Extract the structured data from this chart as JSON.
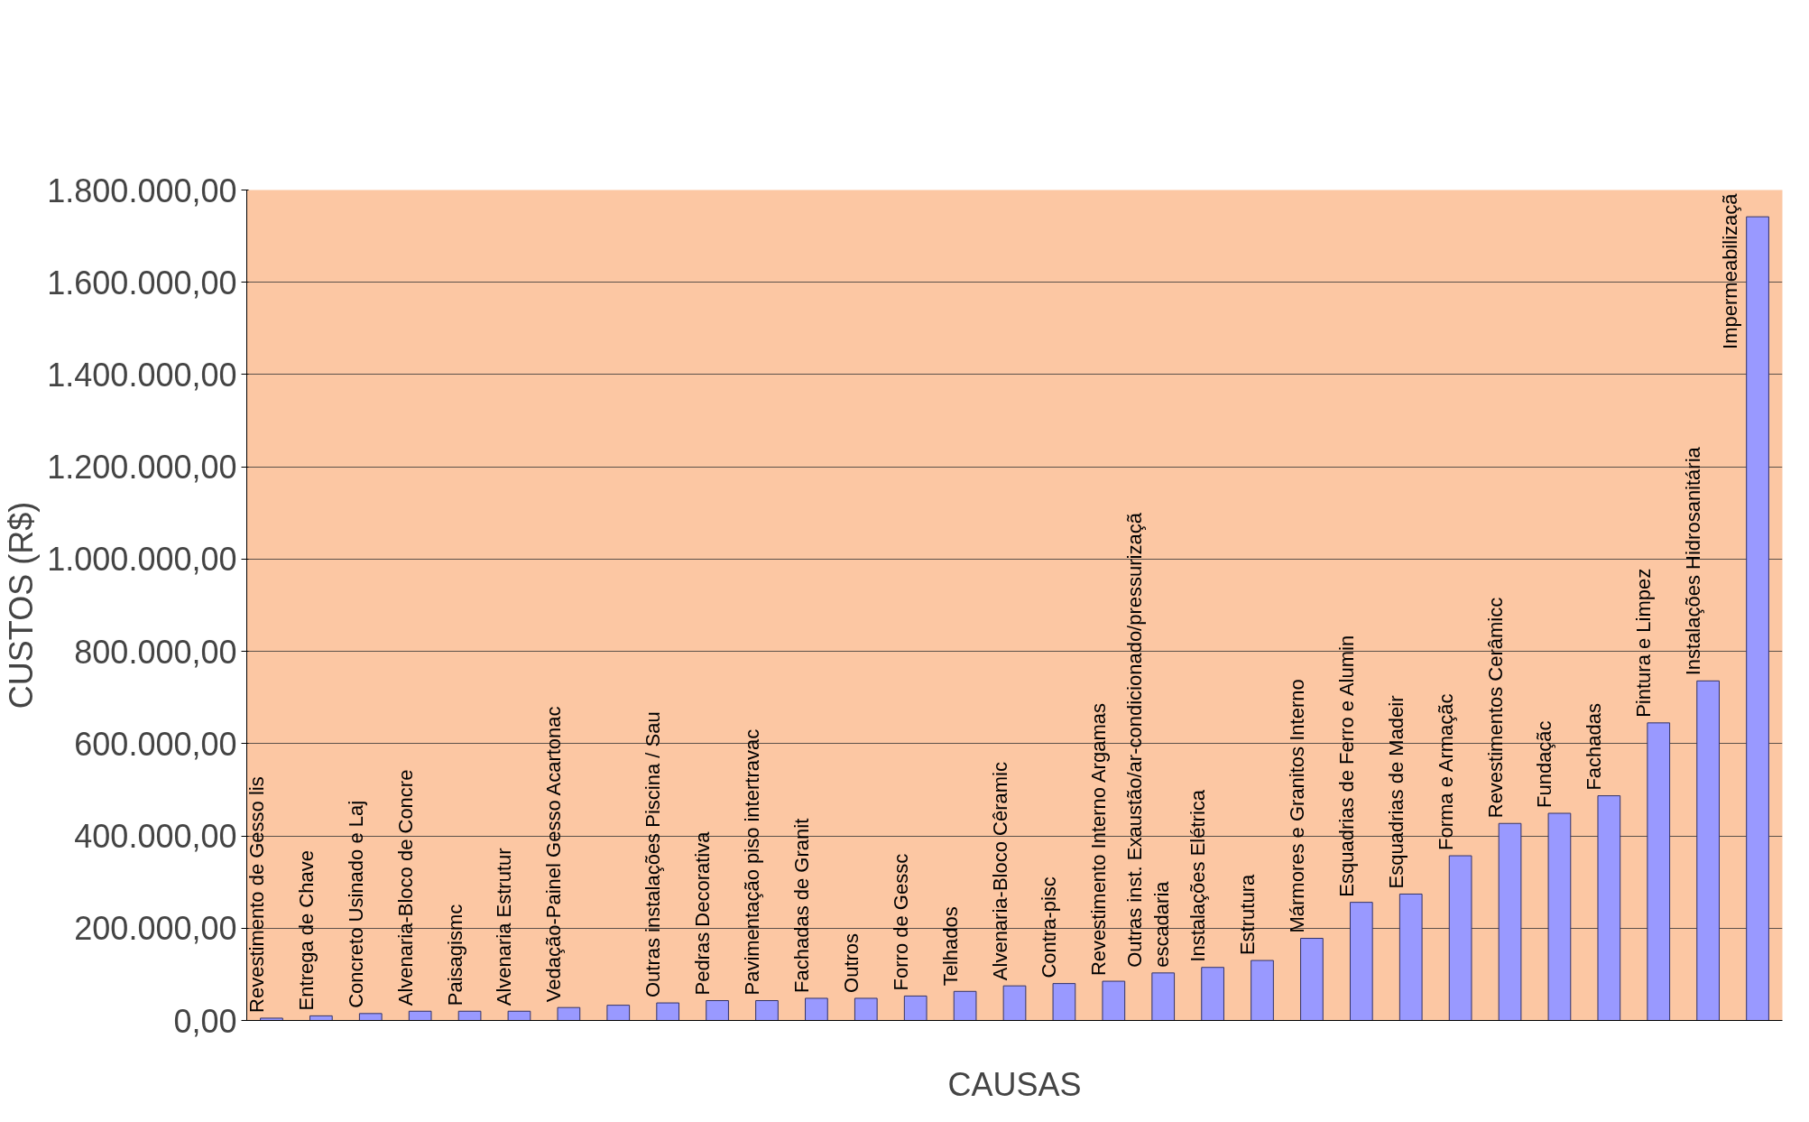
{
  "chart_data": {
    "type": "bar",
    "xlabel": "CAUSAS",
    "ylabel": "CUSTOS (R$)",
    "categories": [
      "Revestimento de Gesso lis",
      "Entrega de Chave",
      "Concreto Usinado e Laj",
      "Alvenaria-Bloco de Concre",
      "Paisagismc",
      "Alvenaria Estrutur",
      "Vedação-Painel Gesso Acartonac",
      null,
      "Outras instalações Piscina / Sau",
      "Pedras Decorativa",
      "Pavimentação piso intertravac",
      "Fachadas de Granit",
      "Outros",
      "Forro de Gessc",
      "Telhados",
      "Alvenaria-Bloco Cêramic",
      "Contra-pisc",
      "Revestimento Interno Argamas",
      "Outras inst. Exaustão/ar-condicionado/pressurizaçã\nescadaria",
      "Instalações Elétrica",
      "Estrutura",
      "Mármores e Granitos Interno",
      "Esquadrias de Ferro e Alumin",
      "Esquadrias de Madeir",
      "Forma e Armaçãc",
      "Revestimentos Cerâmicc",
      "Fundaçãc",
      "Fachadas",
      "Pintura e Limpez",
      "Instalações Hidrosanitária",
      "Impermeabilizaçã"
    ],
    "values": [
      5000,
      10000,
      15000,
      20000,
      20000,
      20000,
      28000,
      33000,
      38000,
      43000,
      43000,
      48000,
      48000,
      53000,
      63000,
      75000,
      80000,
      85000,
      103000,
      115000,
      130000,
      178000,
      256000,
      274000,
      357000,
      427000,
      449000,
      487000,
      645000,
      736000,
      1742000
    ],
    "color": "#9999ff",
    "ylim": [
      0,
      1800000
    ],
    "yticks": [
      {
        "value": 0,
        "label": "0,00"
      },
      {
        "value": 200000,
        "label": "200.000,00"
      },
      {
        "value": 400000,
        "label": "400.000,00"
      },
      {
        "value": 600000,
        "label": "600.000,00"
      },
      {
        "value": 800000,
        "label": "800.000,00"
      },
      {
        "value": 1000000,
        "label": "1.000.000,00"
      },
      {
        "value": 1200000,
        "label": "1.200.000,00"
      },
      {
        "value": 1400000,
        "label": "1.400.000,00"
      },
      {
        "value": 1600000,
        "label": "1.600.000,00"
      },
      {
        "value": 1800000,
        "label": "1.800.000,00"
      }
    ],
    "grid": "y"
  }
}
